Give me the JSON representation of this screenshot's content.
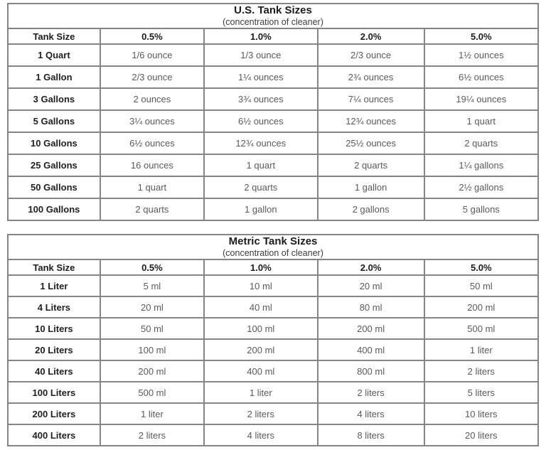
{
  "colors": {
    "border": "#858585",
    "heading_text": "#1c1c1c",
    "cell_text": "#5a5a5a",
    "background": "#ffffff"
  },
  "tables": [
    {
      "id": "us-tank-sizes",
      "title": "U.S. Tank Sizes",
      "subtitle": "(concentration of cleaner)",
      "headers": [
        "Tank Size",
        "0.5%",
        "1.0%",
        "2.0%",
        "5.0%"
      ],
      "rows": [
        [
          "1 Quart",
          "1/6 ounce",
          "1/3 ounce",
          "2/3 ounce",
          "1½ ounces"
        ],
        [
          "1 Gallon",
          "2/3 ounce",
          "1¼ ounces",
          "2¾ ounces",
          "6½ ounces"
        ],
        [
          "3 Gallons",
          "2 ounces",
          "3¾ ounces",
          "7¼ ounces",
          "19¼ ounces"
        ],
        [
          "5 Gallons",
          "3¼ ounces",
          "6½ ounces",
          "12¾ ounces",
          "1 quart"
        ],
        [
          "10 Gallons",
          "6½ ounces",
          "12¾ ounces",
          "25½ ounces",
          "2 quarts"
        ],
        [
          "25 Gallons",
          "16 ounces",
          "1 quart",
          "2 quarts",
          "1¼ gallons"
        ],
        [
          "50 Gallons",
          "1 quart",
          "2 quarts",
          "1 gallon",
          "2½ gallons"
        ],
        [
          "100 Gallons",
          "2 quarts",
          "1 gallon",
          "2 gallons",
          "5 gallons"
        ]
      ]
    },
    {
      "id": "metric-tank-sizes",
      "title": "Metric Tank Sizes",
      "subtitle": "(concentration of cleaner)",
      "headers": [
        "Tank Size",
        "0.5%",
        "1.0%",
        "2.0%",
        "5.0%"
      ],
      "rows": [
        [
          "1 Liter",
          "5 ml",
          "10 ml",
          "20 ml",
          "50 ml"
        ],
        [
          "4 Liters",
          "20 ml",
          "40 ml",
          "80 ml",
          "200 ml"
        ],
        [
          "10 Liters",
          "50 ml",
          "100 ml",
          "200 ml",
          "500 ml"
        ],
        [
          "20 Liters",
          "100 ml",
          "200 ml",
          "400 ml",
          "1 liter"
        ],
        [
          "40 Liters",
          "200 ml",
          "400 ml",
          "800 ml",
          "2 liters"
        ],
        [
          "100 Liters",
          "500 ml",
          "1 liter",
          "2 liters",
          "5 liters"
        ],
        [
          "200 Liters",
          "1 liter",
          "2 liters",
          "4 liters",
          "10 liters"
        ],
        [
          "400 Liters",
          "2 liters",
          "4 liters",
          "8 liters",
          "20 liters"
        ]
      ]
    }
  ]
}
